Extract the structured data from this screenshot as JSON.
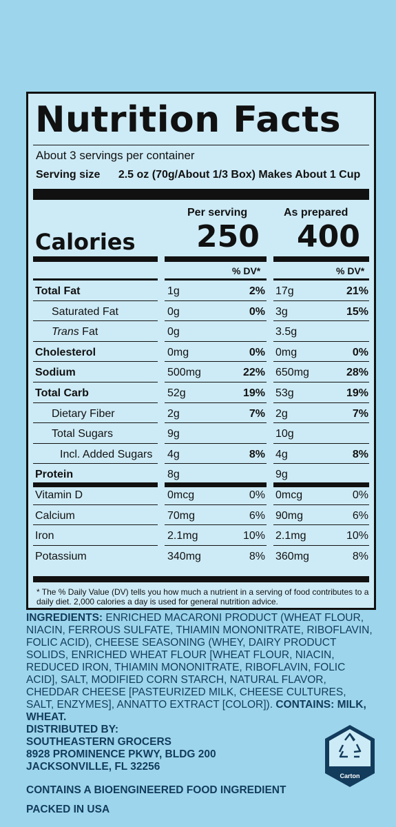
{
  "nutrition": {
    "title": "Nutrition Facts",
    "servings_per_container": "About 3 servings per container",
    "serving_size_label": "Serving size",
    "serving_size_value": "2.5 oz (70g/About 1/3 Box) Makes About 1 Cup",
    "col1_header": "Per serving",
    "col2_header": "As prepared",
    "calories_label": "Calories",
    "calories_col1": "250",
    "calories_col2": "400",
    "dv_header": "% DV*",
    "rows": [
      {
        "label": "Total Fat",
        "amt1": "1g",
        "dv1": "2%",
        "amt2": "17g",
        "dv2": "21%"
      },
      {
        "label": "Saturated Fat",
        "amt1": "0g",
        "dv1": "0%",
        "amt2": "3g",
        "dv2": "15%"
      },
      {
        "label": "Trans",
        "label_suffix": " Fat",
        "amt1": "0g",
        "dv1": "",
        "amt2": "3.5g",
        "dv2": ""
      },
      {
        "label": "Cholesterol",
        "amt1": "0mg",
        "dv1": "0%",
        "amt2": "0mg",
        "dv2": "0%"
      },
      {
        "label": "Sodium",
        "amt1": "500mg",
        "dv1": "22%",
        "amt2": "650mg",
        "dv2": "28%"
      },
      {
        "label": "Total Carb",
        "amt1": "52g",
        "dv1": "19%",
        "amt2": "53g",
        "dv2": "19%"
      },
      {
        "label": "Dietary Fiber",
        "amt1": "2g",
        "dv1": "7%",
        "amt2": "2g",
        "dv2": "7%"
      },
      {
        "label": "Total Sugars",
        "amt1": "9g",
        "dv1": "",
        "amt2": "10g",
        "dv2": ""
      },
      {
        "label": "Incl. Added Sugars",
        "amt1": "4g",
        "dv1": "8%",
        "amt2": "4g",
        "dv2": "8%"
      },
      {
        "label": "Protein",
        "amt1": "8g",
        "dv1": "",
        "amt2": "9g",
        "dv2": ""
      },
      {
        "label": "Vitamin D",
        "amt1": "0mcg",
        "dv1": "0%",
        "amt2": "0mcg",
        "dv2": "0%"
      },
      {
        "label": "Calcium",
        "amt1": "70mg",
        "dv1": "6%",
        "amt2": "90mg",
        "dv2": "6%"
      },
      {
        "label": "Iron",
        "amt1": "2.1mg",
        "dv1": "10%",
        "amt2": "2.1mg",
        "dv2": "10%"
      },
      {
        "label": "Potassium",
        "amt1": "340mg",
        "dv1": "8%",
        "amt2": "360mg",
        "dv2": "8%"
      }
    ],
    "footnote": "* The % Daily Value (DV) tells you how much a nutrient in a serving of food contributes to a daily diet. 2,000 calories a day is used for general nutrition advice."
  },
  "ingredients": {
    "label": "INGREDIENTS:",
    "text": " ENRICHED MACARONI PRODUCT (WHEAT FLOUR, NIACIN, FERROUS SULFATE, THIAMIN MONONITRATE, RIBOFLAVIN, FOLIC ACID), CHEESE SEASONING (WHEY, DAIRY PRODUCT SOLIDS, ENRICHED WHEAT FLOUR [WHEAT FLOUR, NIACIN, REDUCED IRON, THIAMIN MONONITRATE, RIBOFLAVIN, FOLIC ACID], SALT, MODIFIED CORN STARCH, NATURAL FLAVOR, CHEDDAR CHEESE [PASTEURIZED MILK, CHEESE CULTURES, SALT, ENZYMES], ANNATTO EXTRACT [COLOR]). ",
    "contains": "CONTAINS: MILK, WHEAT."
  },
  "distributor": {
    "line1": "DISTRIBUTED BY:",
    "line2": "SOUTHEASTERN GROCERS",
    "line3": "8928 PROMINENCE PKWY, BLDG 200",
    "line4": "JACKSONVILLE, FL 32256"
  },
  "bioengineered": "CONTAINS A BIOENGINEERED FOOD INGREDIENT",
  "packed_in": "PACKED IN USA",
  "recycle_label": "Carton"
}
